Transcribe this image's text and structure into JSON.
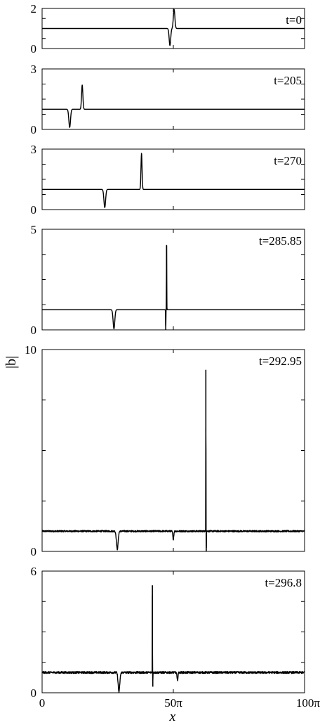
{
  "figure": {
    "ylabel": "|b|",
    "xlabel": "x"
  },
  "chart_data": {
    "type": "line",
    "xlabel": "x",
    "ylabel": "|b|",
    "xlim": [
      0,
      314.159
    ],
    "xticks": [
      {
        "value": 0,
        "label": "0"
      },
      {
        "value": 157.08,
        "label": "50π"
      },
      {
        "value": 314.159,
        "label": "100π"
      }
    ],
    "line_color": "#000000",
    "panels": [
      {
        "label": "t=0",
        "ylim": [
          0,
          2
        ],
        "yticks": [
          "0",
          "2"
        ],
        "baseline": 1.0,
        "features": [
          {
            "x": 153,
            "value": 0.15,
            "width": 1.3
          },
          {
            "x": 158,
            "value": 1.95,
            "width": 1.3
          }
        ],
        "noise": 0
      },
      {
        "label": "t=205",
        "ylim": [
          0,
          3
        ],
        "yticks": [
          "0",
          "3"
        ],
        "baseline": 1.0,
        "features": [
          {
            "x": 33,
            "value": 0.1,
            "width": 1.4
          },
          {
            "x": 48,
            "value": 2.2,
            "width": 1.1
          }
        ],
        "noise": 0
      },
      {
        "label": "t=270",
        "ylim": [
          0,
          3
        ],
        "yticks": [
          "0",
          "3"
        ],
        "baseline": 1.0,
        "features": [
          {
            "x": 75,
            "value": 0.1,
            "width": 1.4
          },
          {
            "x": 119,
            "value": 2.8,
            "width": 0.9
          }
        ],
        "noise": 0
      },
      {
        "label": "t=285.85",
        "ylim": [
          0,
          5
        ],
        "yticks": [
          "0",
          "5"
        ],
        "baseline": 1.0,
        "features": [
          {
            "x": 86,
            "value": 0.05,
            "width": 1.4
          },
          {
            "x": 148,
            "value": 0.0,
            "width": 0.25
          },
          {
            "x": 149,
            "value": 4.2,
            "width": 0.25
          }
        ],
        "noise": 0
      },
      {
        "label": "t=292.95",
        "ylim": [
          0,
          10
        ],
        "yticks": [
          "0",
          "10"
        ],
        "baseline": 1.0,
        "features": [
          {
            "x": 90,
            "value": 0.1,
            "width": 1.4
          },
          {
            "x": 157,
            "value": 0.6,
            "width": 0.8
          },
          {
            "x": 196,
            "value": 9.0,
            "width": 0.15
          },
          {
            "x": 196.5,
            "value": 0.0,
            "width": 0.15
          }
        ],
        "noise": 0.04
      },
      {
        "label": "t=296.8",
        "ylim": [
          0,
          6
        ],
        "yticks": [
          "0",
          "6"
        ],
        "baseline": 1.0,
        "features": [
          {
            "x": 92,
            "value": 0.05,
            "width": 1.4
          },
          {
            "x": 132,
            "value": 5.3,
            "width": 0.15
          },
          {
            "x": 132.5,
            "value": 0.3,
            "width": 0.15
          },
          {
            "x": 162,
            "value": 0.6,
            "width": 0.8
          }
        ],
        "noise": 0.05
      }
    ]
  }
}
